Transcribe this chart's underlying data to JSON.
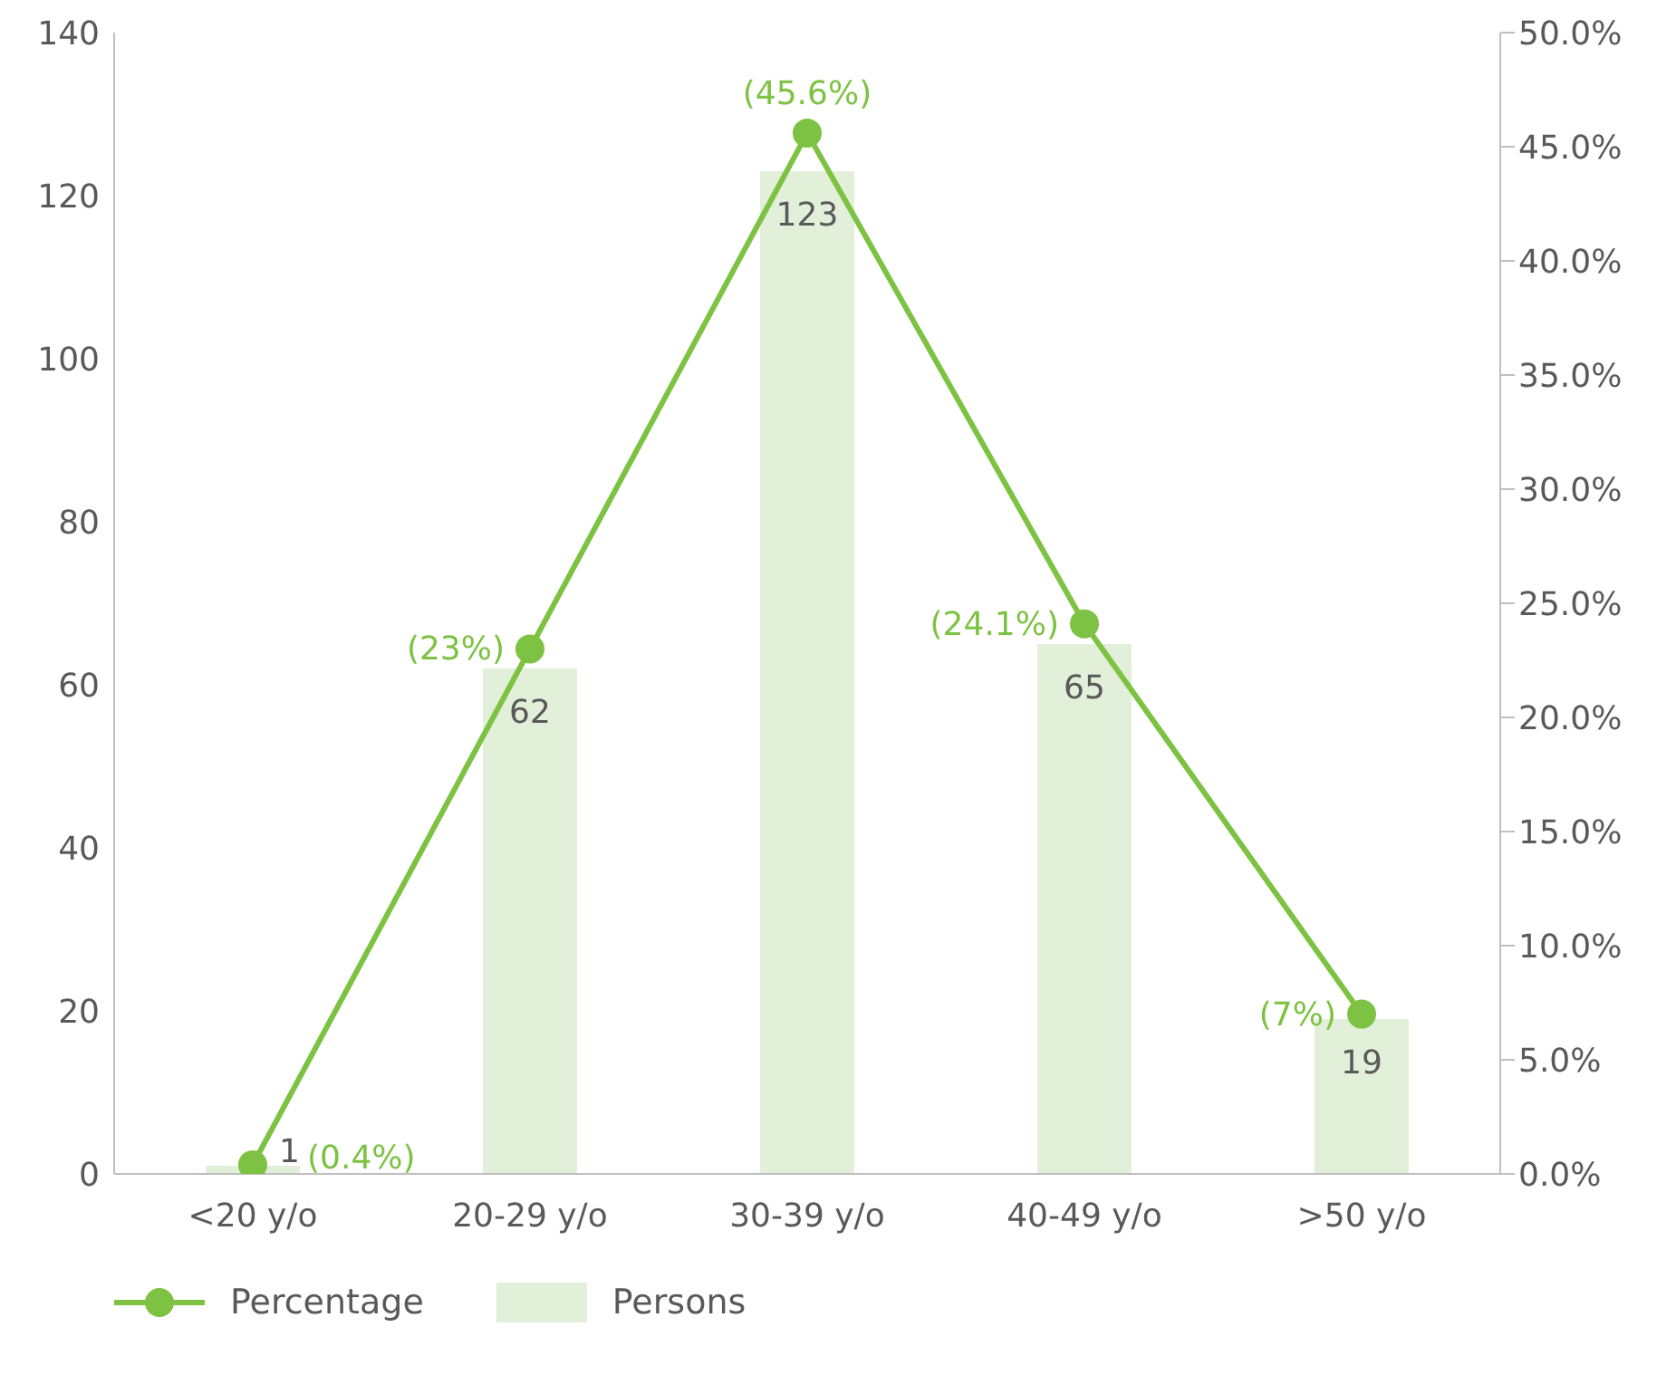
{
  "chart_data": {
    "type": "bar",
    "categories": [
      "<20 y/o",
      "20-29 y/o",
      "30-39 y/o",
      "40-49 y/o",
      ">50 y/o"
    ],
    "series": [
      {
        "name": "Percentage",
        "type": "line",
        "axis": "y2",
        "color": "#7dc242",
        "values": [
          0.4,
          23,
          45.6,
          24.1,
          7
        ],
        "value_labels": [
          "(0.4%)",
          "(23%)",
          "(45.6%)",
          "(24.1%)",
          "(7%)"
        ]
      },
      {
        "name": "Persons",
        "color": "#e2efd9",
        "values": [
          1,
          62,
          123,
          65,
          19
        ],
        "value_labels": [
          "1",
          "62",
          "123",
          "65",
          "19"
        ]
      }
    ],
    "ylim": [
      0,
      140
    ],
    "yticks": [
      0,
      20,
      40,
      60,
      80,
      100,
      120,
      140
    ],
    "y2lim": [
      0,
      50
    ],
    "y2ticks": [
      {
        "value": 0,
        "label": "0.0%"
      },
      {
        "value": 5,
        "label": "5.0%"
      },
      {
        "value": 10,
        "label": "10.0%"
      },
      {
        "value": 15,
        "label": "15.0%"
      },
      {
        "value": 20,
        "label": "20.0%"
      },
      {
        "value": 25,
        "label": "25.0%"
      },
      {
        "value": 30,
        "label": "30.0%"
      },
      {
        "value": 35,
        "label": "35.0%"
      },
      {
        "value": 40,
        "label": "40.0%"
      },
      {
        "value": 45,
        "label": "45.0%"
      },
      {
        "value": 50,
        "label": "50.0%"
      }
    ],
    "grid": false,
    "legend": "bottom left",
    "marker": "circle",
    "line_style": "solid"
  }
}
